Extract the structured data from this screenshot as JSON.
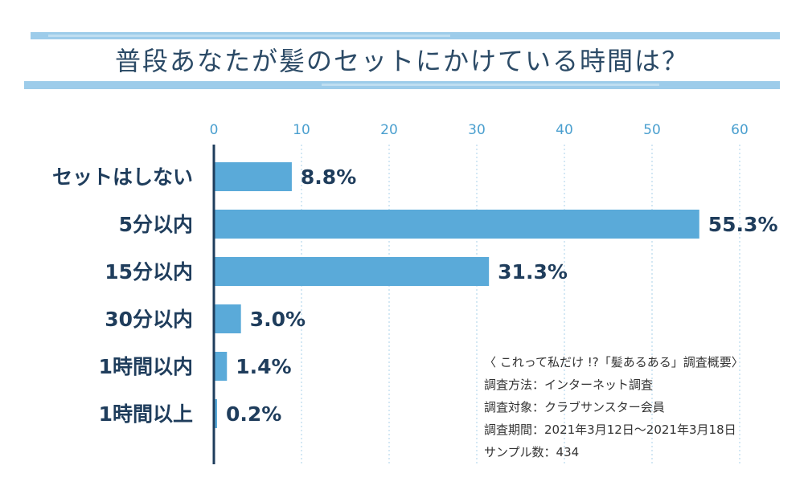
{
  "chart_data": {
    "type": "bar",
    "orientation": "horizontal",
    "title": "普段あなたが髪のセットにかけている時間は？",
    "categories": [
      "セットはしない",
      "5分以内",
      "15分以内",
      "30分以内",
      "1時間以内",
      "1時間以上"
    ],
    "values": [
      8.8,
      55.3,
      31.3,
      3.0,
      1.4,
      0.2
    ],
    "value_labels": [
      "8.8%",
      "55.3%",
      "31.3%",
      "3.0%",
      "1.4%",
      "0.2%"
    ],
    "xticks": [
      "0",
      "10",
      "20",
      "30",
      "40",
      "50",
      "60"
    ],
    "xlim": [
      0,
      64
    ],
    "grid": true,
    "bar_color": "#5aaad9",
    "axis_color": "#1f3d5c"
  },
  "notes": {
    "line1": "〈 これって私だけ !?「髪あるある」調査概要〉",
    "line2": "調査方法：インターネット調査",
    "line3": "調査対象：クラブサンスター会員",
    "line4": "調査期間：2021年3月12日〜2021年3月18日",
    "line5": "サンプル数：434"
  }
}
